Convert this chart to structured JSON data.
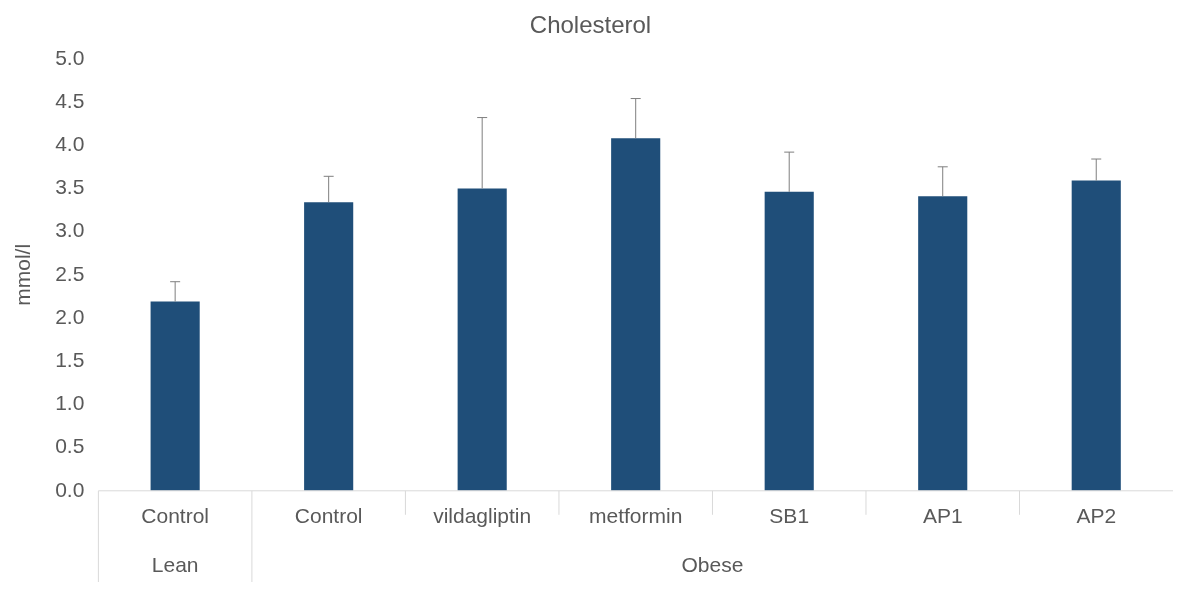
{
  "chart_data": {
    "type": "bar",
    "title": "Cholesterol",
    "ylabel": "mmol/l",
    "categories": [
      "Control",
      "Control",
      "vildagliptin",
      "metformin",
      "SB1",
      "AP1",
      "AP2"
    ],
    "values": [
      2.19,
      3.34,
      3.5,
      4.08,
      3.46,
      3.41,
      3.59
    ],
    "errors": [
      [
        2.19,
        2.42
      ],
      [
        3.34,
        3.64
      ],
      [
        3.5,
        4.32
      ],
      [
        4.08,
        4.54
      ],
      [
        3.46,
        3.92
      ],
      [
        3.41,
        3.75
      ],
      [
        3.59,
        3.84
      ]
    ],
    "color": "#1f4e79",
    "ylim": [
      0,
      5
    ],
    "yticks": [
      {
        "value": 0,
        "label": "0.0"
      },
      {
        "value": 0.5,
        "label": "0.5"
      },
      {
        "value": 1,
        "label": "1.0"
      },
      {
        "value": 1.5,
        "label": "1.5"
      },
      {
        "value": 2,
        "label": "2.0"
      },
      {
        "value": 2.5,
        "label": "2.5"
      },
      {
        "value": 3,
        "label": "3.0"
      },
      {
        "value": 3.5,
        "label": "3.5"
      },
      {
        "value": 4,
        "label": "4.0"
      },
      {
        "value": 4.5,
        "label": "4.5"
      },
      {
        "value": 5,
        "label": "5.0"
      }
    ],
    "annotations": [
      "Lean",
      "Obese"
    ],
    "grid": false,
    "legend": false
  }
}
